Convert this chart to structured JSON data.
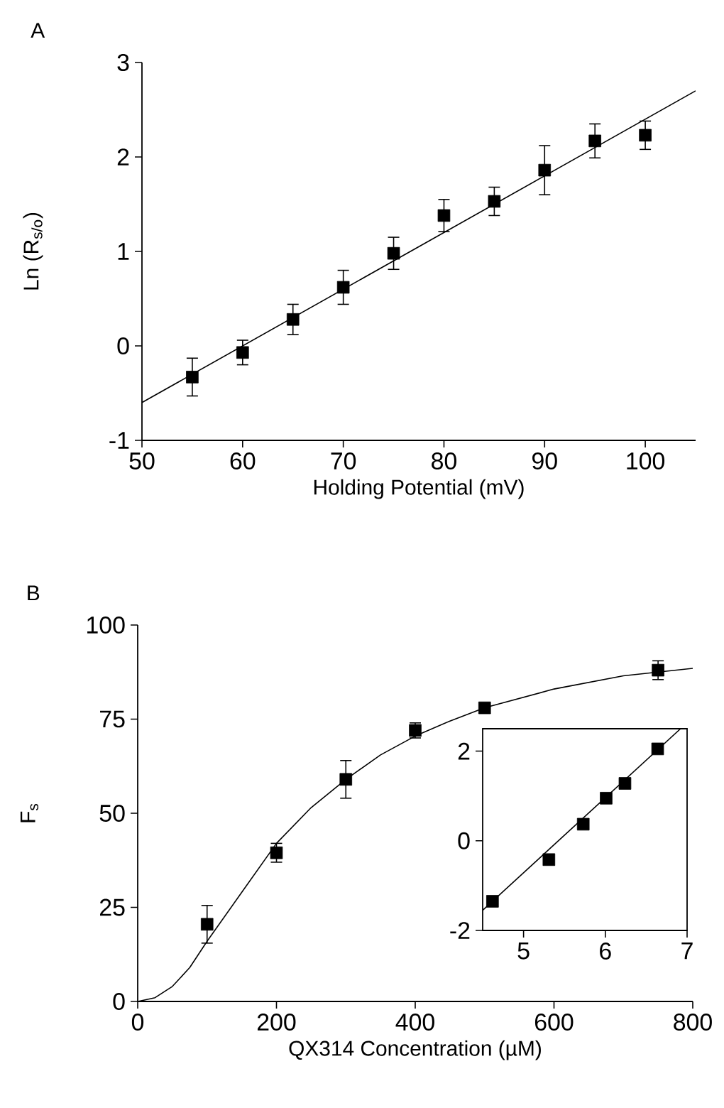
{
  "chart_data": [
    {
      "type": "scatter",
      "title": "A",
      "xlabel": "Holding Potential (mV)",
      "ylabel": "Ln (R$_{s/o}$)",
      "xlim": [
        50,
        105
      ],
      "ylim": [
        -1,
        3
      ],
      "xticks": [
        50,
        60,
        70,
        80,
        90,
        100
      ],
      "yticks": [
        -1,
        0,
        1,
        2,
        3
      ],
      "grid": false,
      "series": [
        {
          "type": "scatter",
          "marker": "square",
          "color": "#000000",
          "x": [
            55,
            60,
            65,
            70,
            75,
            80,
            85,
            90,
            95,
            100
          ],
          "values": [
            -0.33,
            -0.07,
            0.28,
            0.62,
            0.98,
            1.38,
            1.53,
            1.86,
            2.17,
            2.23
          ],
          "errors": [
            0.2,
            0.13,
            0.16,
            0.18,
            0.17,
            0.17,
            0.15,
            0.26,
            0.18,
            0.15
          ]
        },
        {
          "type": "line",
          "marker": "none",
          "line_style": "solid",
          "color": "#000000",
          "x": [
            50,
            105
          ],
          "values": [
            -0.6,
            2.7
          ]
        }
      ]
    },
    {
      "type": "scatter",
      "title": "B",
      "xlabel": "QX314 Concentration (µM)",
      "ylabel": "F$_{s}$",
      "xlim": [
        0,
        800
      ],
      "ylim": [
        0,
        100
      ],
      "xticks": [
        0,
        200,
        400,
        600,
        800
      ],
      "yticks": [
        0,
        25,
        50,
        75,
        100
      ],
      "grid": false,
      "series": [
        {
          "type": "scatter",
          "marker": "square",
          "color": "#000000",
          "x": [
            100,
            200,
            300,
            400,
            500,
            750
          ],
          "values": [
            20.5,
            39.5,
            59,
            72,
            78,
            88
          ],
          "errors": [
            5,
            2.5,
            5,
            2,
            null,
            2.5
          ]
        },
        {
          "type": "line",
          "marker": "none",
          "line_style": "solid",
          "color": "#000000",
          "x": [
            0,
            25,
            50,
            75,
            100,
            150,
            200,
            250,
            300,
            350,
            400,
            450,
            500,
            600,
            700,
            800
          ],
          "values": [
            0,
            1,
            4,
            9,
            16,
            29,
            42,
            51.5,
            59,
            65.5,
            70.5,
            74.5,
            78,
            83,
            86.5,
            88.5
          ]
        }
      ]
    },
    {
      "type": "scatter",
      "xlim": [
        4.5,
        7
      ],
      "ylim": [
        -2,
        2.5
      ],
      "xticks": [
        5,
        6,
        7
      ],
      "yticks": [
        -2,
        0,
        2
      ],
      "grid": false,
      "series": [
        {
          "type": "scatter",
          "marker": "square",
          "color": "#000000",
          "x": [
            4.62,
            5.31,
            5.73,
            6.01,
            6.24,
            6.64
          ],
          "values": [
            -1.35,
            -0.42,
            0.37,
            0.95,
            1.28,
            2.05
          ]
        },
        {
          "type": "line",
          "marker": "none",
          "line_style": "solid",
          "color": "#000000",
          "x": [
            4.5,
            6.92
          ],
          "values": [
            -1.55,
            2.5
          ]
        }
      ]
    }
  ]
}
